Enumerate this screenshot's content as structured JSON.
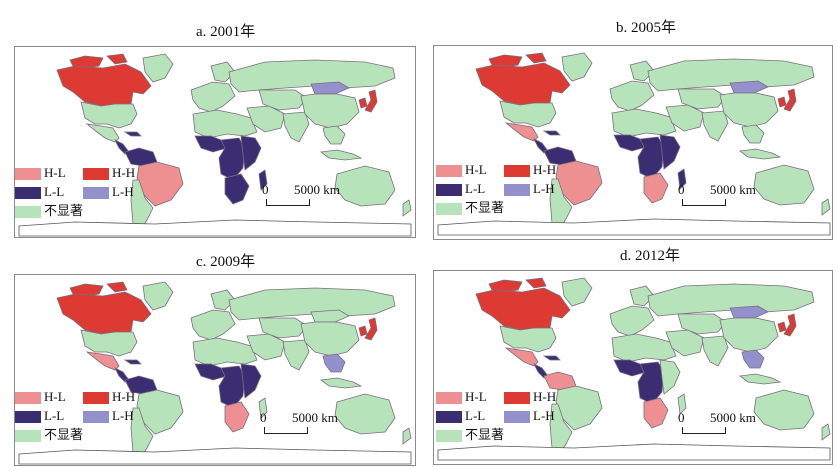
{
  "colors": {
    "H-L": "#ee8f92",
    "H-H": "#dc3a33",
    "L-L": "#3a2d72",
    "L-H": "#9490cc",
    "ns": "#b7e3bb",
    "border": "#7a6e7e"
  },
  "legend": {
    "hl": "H-L",
    "hh": "H-H",
    "ll": "L-L",
    "lh": "L-H",
    "ns": "不显著"
  },
  "scale": {
    "zero": "0",
    "dist": "5000 km"
  },
  "panels": [
    {
      "title": "a. 2001年",
      "regions": {
        "northAmerica": "H-H",
        "mexico": "ns",
        "centralAm": "L-L",
        "caribbean": "L-L",
        "northSA": "L-L",
        "brazil": "H-L",
        "southSA": "ns",
        "westAfrica": "L-L",
        "centralAfrica": "L-L",
        "eastAfrica": "L-L",
        "southAfrica": "L-L",
        "madagascar": "L-L",
        "mongolia": "L-H",
        "seAsia": "ns",
        "japan": "H-H"
      }
    },
    {
      "title": "b. 2005年",
      "regions": {
        "northAmerica": "H-H",
        "mexico": "H-L",
        "centralAm": "L-L",
        "caribbean": "L-L",
        "northSA": "L-L",
        "brazil": "H-L",
        "southSA": "ns",
        "westAfrica": "L-L",
        "centralAfrica": "L-L",
        "eastAfrica": "L-L",
        "southAfrica": "H-L",
        "madagascar": "L-L",
        "mongolia": "L-H",
        "seAsia": "ns",
        "japan": "H-H"
      }
    },
    {
      "title": "c. 2009年",
      "regions": {
        "northAmerica": "H-H",
        "mexico": "H-L",
        "centralAm": "L-L",
        "caribbean": "L-L",
        "northSA": "L-L",
        "brazil": "ns",
        "southSA": "ns",
        "westAfrica": "L-L",
        "centralAfrica": "L-L",
        "eastAfrica": "L-L",
        "southAfrica": "H-L",
        "madagascar": "ns",
        "mongolia": "ns",
        "seAsia": "L-H",
        "japan": "H-H"
      }
    },
    {
      "title": "d. 2012年",
      "regions": {
        "northAmerica": "H-H",
        "mexico": "H-L",
        "centralAm": "L-L",
        "caribbean": "L-L",
        "northSA": "H-L",
        "brazil": "ns",
        "southSA": "ns",
        "westAfrica": "L-L",
        "centralAfrica": "L-L",
        "eastAfrica": "ns",
        "southAfrica": "H-L",
        "madagascar": "ns",
        "mongolia": "L-H",
        "seAsia": "L-H",
        "japan": "H-H"
      }
    }
  ]
}
